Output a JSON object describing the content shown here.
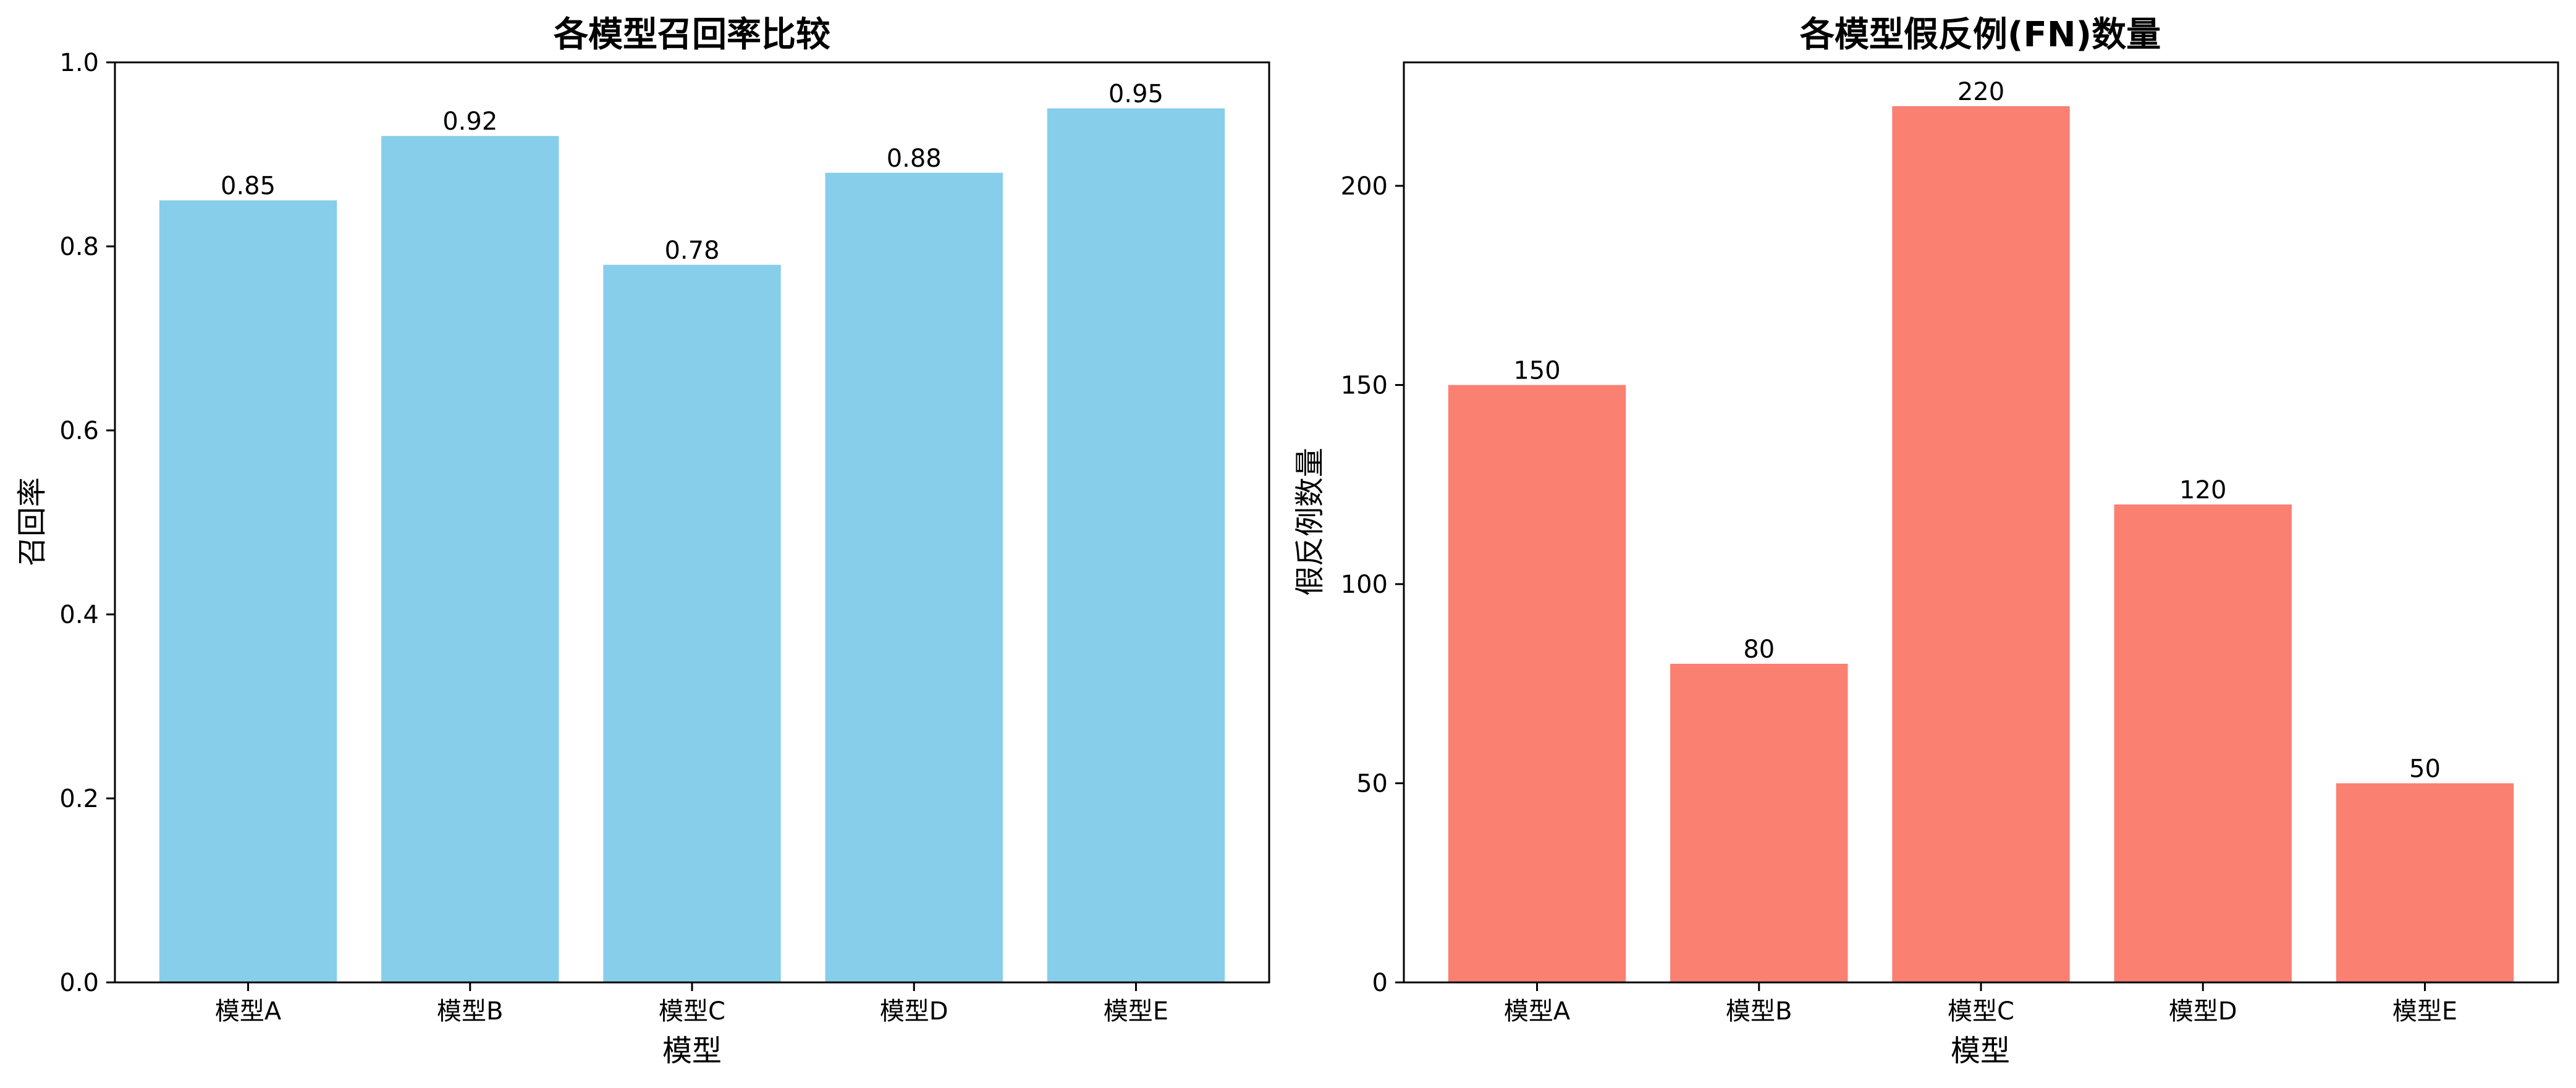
{
  "chart_data": [
    {
      "type": "bar",
      "title": "各模型召回率比较",
      "xlabel": "模型",
      "ylabel": "召回率",
      "categories": [
        "模型A",
        "模型B",
        "模型C",
        "模型D",
        "模型E"
      ],
      "values": [
        0.85,
        0.92,
        0.78,
        0.88,
        0.95
      ],
      "value_labels": [
        "0.85",
        "0.92",
        "0.78",
        "0.88",
        "0.95"
      ],
      "ylim": [
        0,
        1.0
      ],
      "yticks": [
        0,
        0.2,
        0.4,
        0.6,
        0.8,
        1.0
      ],
      "ytick_labels": [
        "0.0",
        "0.2",
        "0.4",
        "0.6",
        "0.8",
        "1.0"
      ],
      "color": "#87CEEB",
      "grid": false
    },
    {
      "type": "bar",
      "title": "各模型假反例(FN)数量",
      "xlabel": "模型",
      "ylabel": "假反例数量",
      "categories": [
        "模型A",
        "模型B",
        "模型C",
        "模型D",
        "模型E"
      ],
      "values": [
        150,
        80,
        220,
        120,
        50
      ],
      "value_labels": [
        "150",
        "80",
        "220",
        "120",
        "50"
      ],
      "ylim": [
        0,
        231
      ],
      "yticks": [
        0,
        50,
        100,
        150,
        200
      ],
      "ytick_labels": [
        "0",
        "50",
        "100",
        "150",
        "200"
      ],
      "color": "#FA8072",
      "grid": false
    }
  ]
}
